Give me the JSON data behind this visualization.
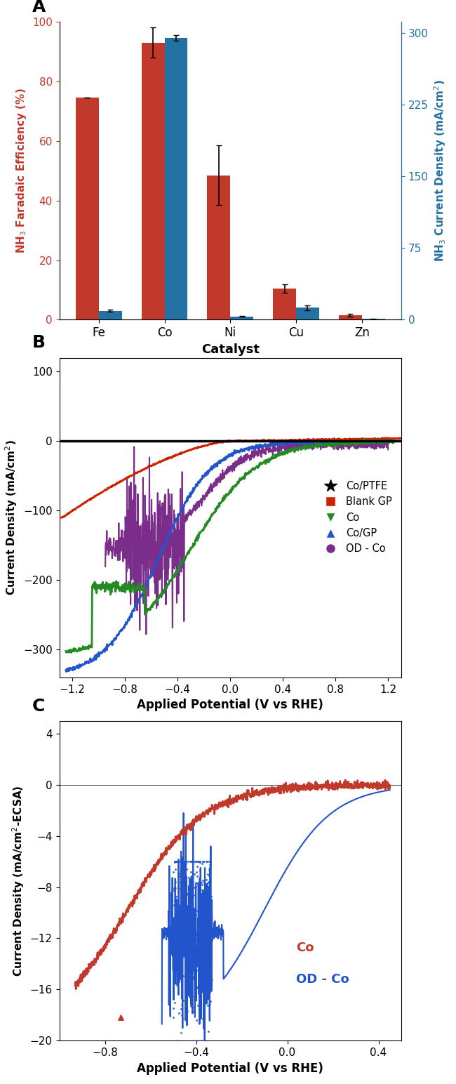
{
  "panel_A": {
    "catalysts": [
      "Fe",
      "Co",
      "Ni",
      "Cu",
      "Zn"
    ],
    "FE_values": [
      74.5,
      93.0,
      48.5,
      10.5,
      1.5
    ],
    "FE_errors": [
      0.0,
      5.0,
      10.0,
      1.5,
      0.5
    ],
    "CD_values": [
      9.5,
      295.0,
      3.5,
      12.5,
      1.0
    ],
    "CD_errors": [
      1.0,
      3.0,
      0.5,
      2.5,
      0.3
    ],
    "bar_color_red": "#C0392B",
    "bar_color_blue": "#2471A3",
    "ylabel_left": "NH$_3$ Faradaic Efficiency (%)",
    "ylabel_right": "NH$_3$ Current Density (mA/cm$^2$)",
    "xlabel": "Catalyst",
    "ylim_left": [
      0,
      100
    ],
    "ylim_right": [
      0,
      312
    ],
    "yticks_left": [
      0,
      20,
      40,
      60,
      80,
      100
    ],
    "yticks_right": [
      0,
      75,
      150,
      225,
      300
    ],
    "label_A": "A"
  },
  "panel_B": {
    "xlabel": "Applied Potential (V vs RHE)",
    "ylabel": "Current Density (mA/cm$^2$)",
    "xlim": [
      -1.3,
      1.3
    ],
    "ylim": [
      -340,
      120
    ],
    "yticks": [
      -300,
      -200,
      -100,
      0,
      100
    ],
    "xticks": [
      -1.2,
      -0.8,
      -0.4,
      0.0,
      0.4,
      0.8,
      1.2
    ],
    "legend_labels": [
      "Co/PTFE",
      "Blank GP",
      "Co",
      "Co/GP",
      "OD - Co"
    ],
    "legend_colors": [
      "#000000",
      "#CC2200",
      "#228B22",
      "#2255CC",
      "#7B2D8B"
    ],
    "label_B": "B"
  },
  "panel_C": {
    "xlabel": "Applied Potential (V vs RHE)",
    "ylabel": "Current Density (mA/cm$^2$-ECSA)",
    "xlim": [
      -1.0,
      0.5
    ],
    "ylim": [
      -20,
      5
    ],
    "yticks": [
      -20,
      -16,
      -12,
      -8,
      -4,
      0,
      4
    ],
    "xticks": [
      -0.8,
      -0.4,
      0.0,
      0.4
    ],
    "label_C": "C",
    "co_label": "Co",
    "od_co_label": "OD - Co",
    "co_color": "#C0392B",
    "od_co_color": "#2255CC"
  }
}
